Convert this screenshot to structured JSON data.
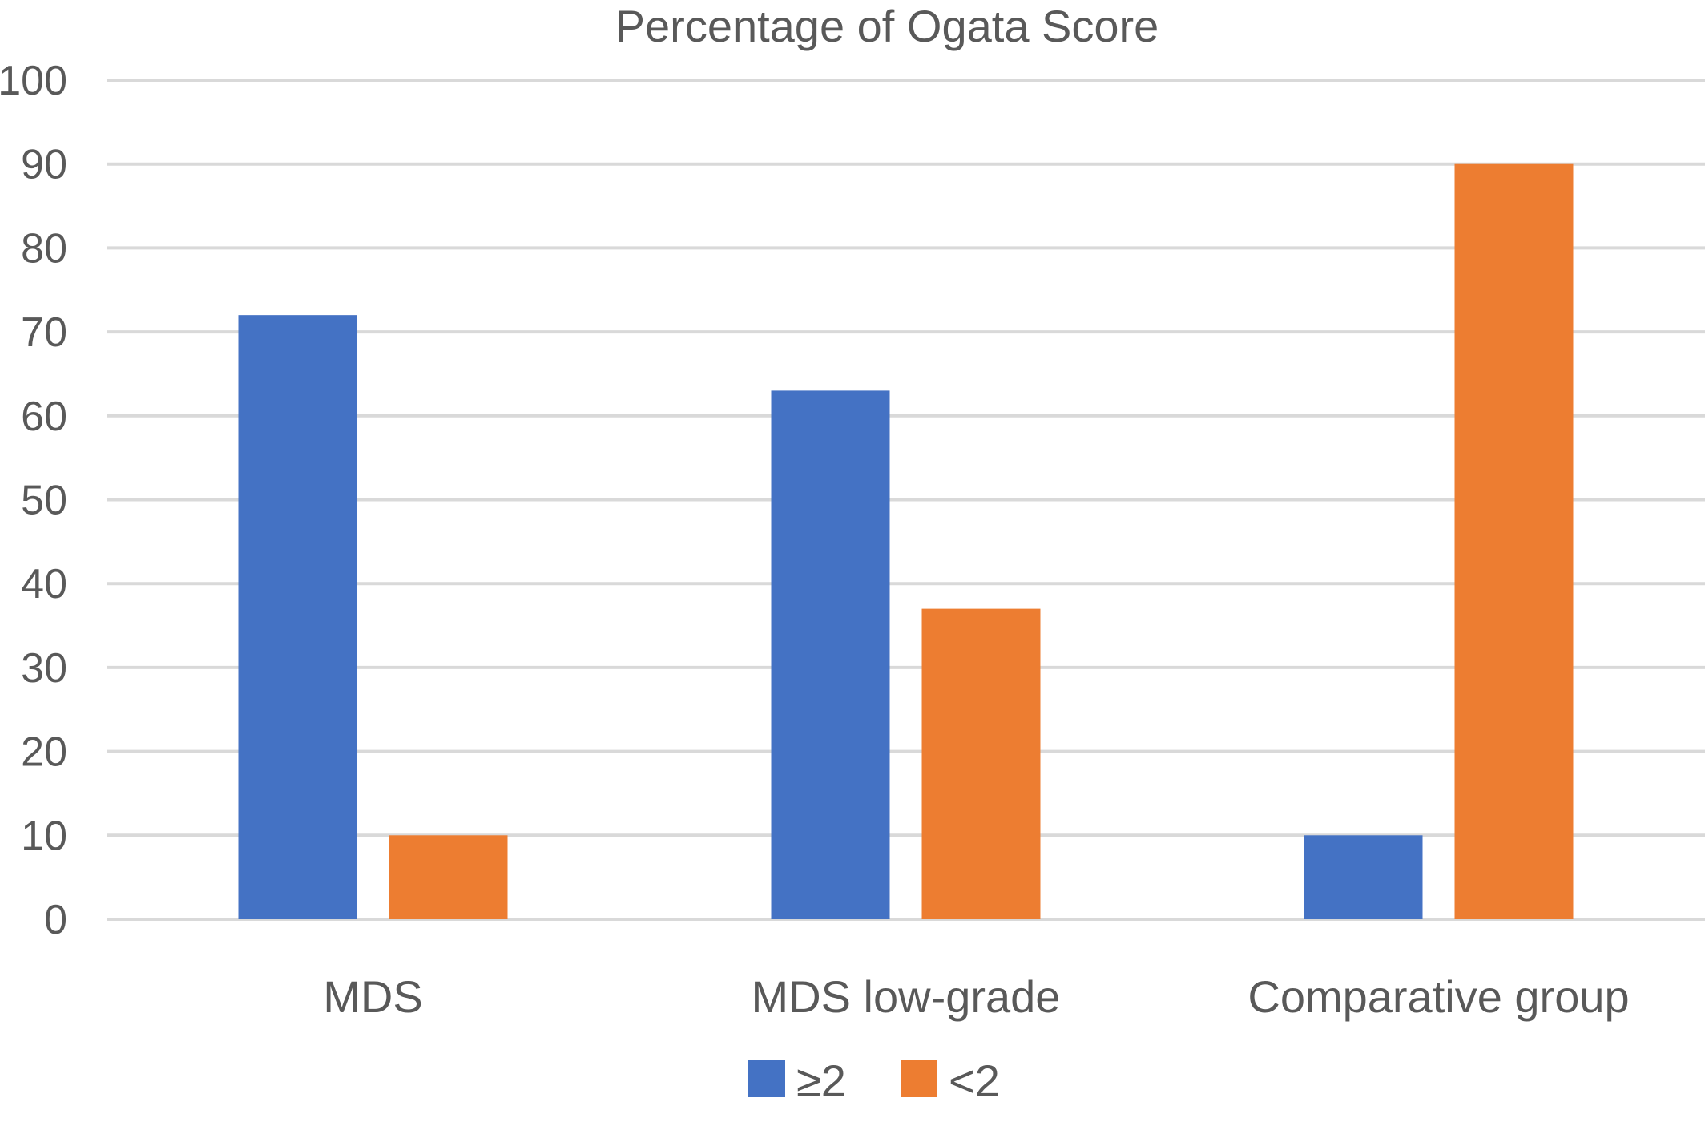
{
  "chart_data": {
    "type": "bar",
    "title": "Percentage of Ogata Score",
    "xlabel": "",
    "ylabel": "",
    "categories": [
      "MDS",
      "MDS low-grade",
      "Comparative group"
    ],
    "series": [
      {
        "name": "≥2",
        "color": "#4472C4",
        "values": [
          72,
          63,
          10
        ]
      },
      {
        "name": "<2",
        "color": "#ED7D31",
        "values": [
          10,
          37,
          90
        ]
      }
    ],
    "ylim": [
      0,
      100
    ],
    "yticks": [
      "0",
      "10",
      "20",
      "30",
      "40",
      "50",
      "60",
      "70",
      "80",
      "90",
      "100"
    ],
    "grid": true,
    "gridline_color": "#D9D9D9",
    "text_color": "#595959",
    "legend_position": "bottom"
  }
}
